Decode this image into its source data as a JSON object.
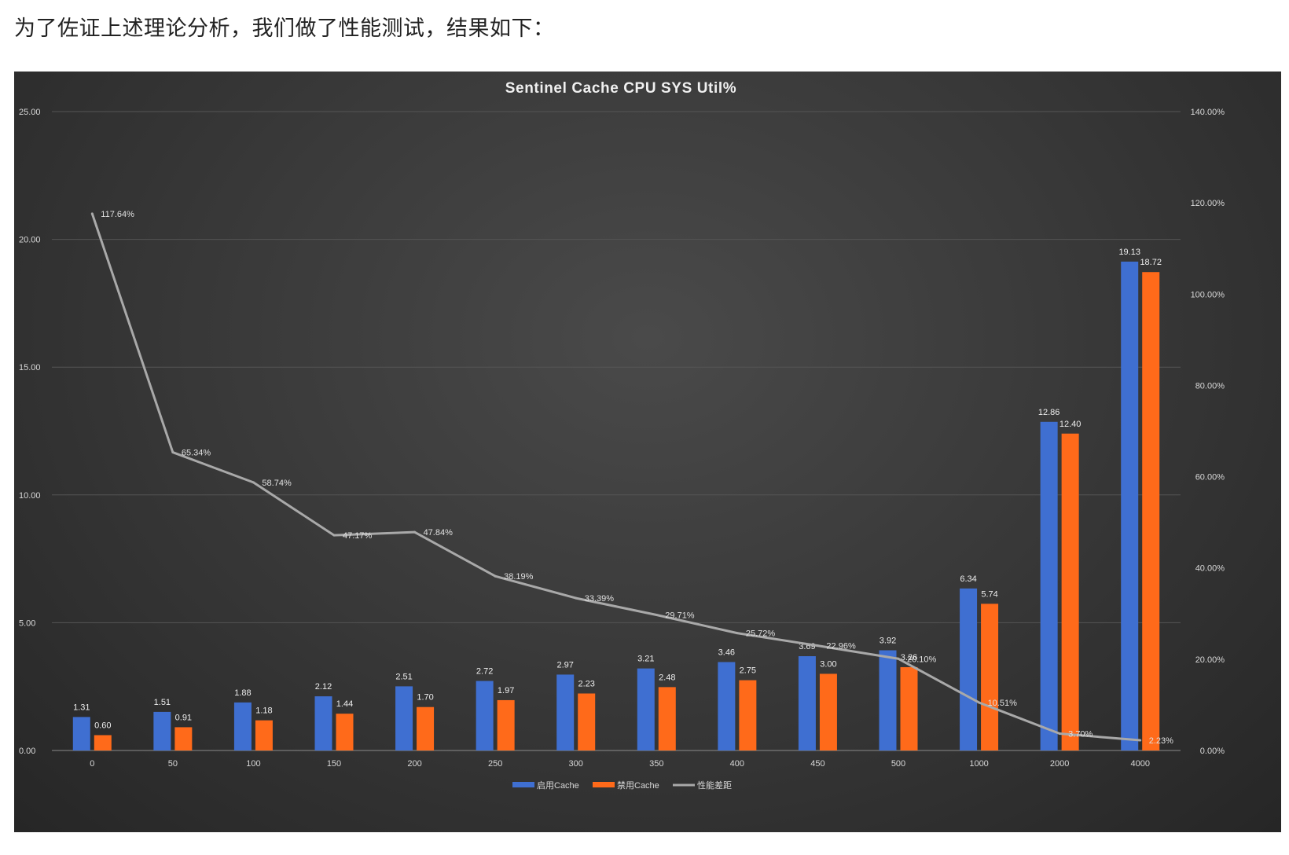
{
  "intro_text": "为了佐证上述理论分析，我们做了性能测试，结果如下：",
  "chart_data": {
    "type": "bar",
    "title": "Sentinel Cache CPU SYS Util%",
    "xlabel": "",
    "ylabel": "",
    "categories": [
      "0",
      "50",
      "100",
      "150",
      "200",
      "250",
      "300",
      "350",
      "400",
      "450",
      "500",
      "1000",
      "2000",
      "4000"
    ],
    "ylim": [
      0,
      25
    ],
    "y_ticks": [
      "0.00",
      "5.00",
      "10.00",
      "15.00",
      "20.00",
      "25.00"
    ],
    "y2lim": [
      0,
      140
    ],
    "y2_ticks": [
      "0.00%",
      "20.00%",
      "40.00%",
      "60.00%",
      "80.00%",
      "100.00%",
      "120.00%",
      "140.00%"
    ],
    "grid": true,
    "legend_position": "bottom",
    "series": [
      {
        "name": "启用Cache",
        "kind": "bar",
        "axis": "left",
        "color": "#3f6fd1",
        "values": [
          1.31,
          1.51,
          1.88,
          2.12,
          2.51,
          2.72,
          2.97,
          3.21,
          3.46,
          3.69,
          3.92,
          6.34,
          12.86,
          19.13
        ],
        "labels": [
          "1.31",
          "1.51",
          "1.88",
          "2.12",
          "2.51",
          "2.72",
          "2.97",
          "3.21",
          "3.46",
          "3.69",
          "3.92",
          "6.34",
          "12.86",
          "19.13"
        ]
      },
      {
        "name": "禁用Cache",
        "kind": "bar",
        "axis": "left",
        "color": "#ff6a1a",
        "values": [
          0.6,
          0.91,
          1.18,
          1.44,
          1.7,
          1.97,
          2.23,
          2.48,
          2.75,
          3.0,
          3.26,
          5.74,
          12.4,
          18.72
        ],
        "labels": [
          "0.60",
          "0.91",
          "1.18",
          "1.44",
          "1.70",
          "1.97",
          "2.23",
          "2.48",
          "2.75",
          "3.00",
          "3.26",
          "5.74",
          "12.40",
          "18.72"
        ]
      },
      {
        "name": "性能差距",
        "kind": "line",
        "axis": "right",
        "color": "#a9a9a9",
        "values": [
          117.64,
          65.34,
          58.74,
          47.17,
          47.84,
          38.19,
          33.39,
          29.71,
          25.72,
          22.96,
          20.1,
          10.51,
          3.7,
          2.23
        ],
        "labels": [
          "117.64%",
          "65.34%",
          "58.74%",
          "47.17%",
          "47.84%",
          "38.19%",
          "33.39%",
          "29.71%",
          "25.72%",
          "22.96%",
          "20.10%",
          "10.51%",
          "3.70%",
          "2.23%"
        ]
      }
    ]
  }
}
